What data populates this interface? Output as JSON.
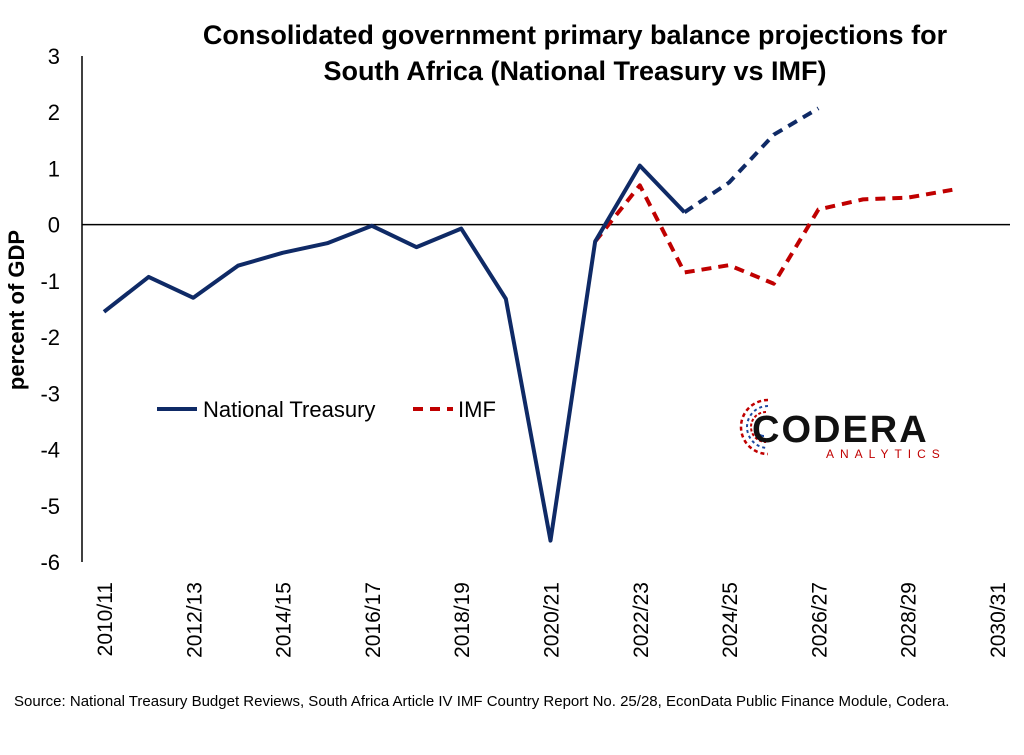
{
  "colors": {
    "treasury": "#0f2a66",
    "imf": "#c00000",
    "axis": "#000000",
    "logo_dark": "#111111",
    "logo_sub": "#c00000"
  },
  "logo": {
    "word": "CODERA",
    "sub": "ANALYTICS"
  },
  "source_text": "Source: National Treasury Budget Reviews, South Africa Article IV IMF Country Report No. 25/28, EconData Public Finance Module, Codera.",
  "chart_data": {
    "type": "line",
    "title_lines": [
      "Consolidated government primary balance projections for",
      "South Africa (National Treasury vs IMF)"
    ],
    "ylabel": "percent of GDP",
    "xlabel": "",
    "ylim": [
      -6,
      3
    ],
    "yticks": [
      3,
      2,
      1,
      0,
      -1,
      -2,
      -3,
      -4,
      -5,
      -6
    ],
    "x": [
      "2010/11",
      "2011/12",
      "2012/13",
      "2013/14",
      "2014/15",
      "2015/16",
      "2016/17",
      "2017/18",
      "2018/19",
      "2019/20",
      "2020/21",
      "2021/22",
      "2022/23",
      "2023/24",
      "2024/25",
      "2025/26",
      "2026/27",
      "2027/28",
      "2028/29",
      "2029/30",
      "2030/31"
    ],
    "xtick_labels": [
      "2010/11",
      "2012/13",
      "2014/15",
      "2016/17",
      "2018/19",
      "2020/21",
      "2022/23",
      "2024/25",
      "2026/27",
      "2028/29",
      "2030/31"
    ],
    "legend_position": "center-left",
    "series": [
      {
        "name": "National Treasury",
        "style": "solid-then-dashed",
        "solid_until": "2023/24",
        "points": [
          {
            "x": "2010/11",
            "y": -1.55
          },
          {
            "x": "2011/12",
            "y": -0.93
          },
          {
            "x": "2012/13",
            "y": -1.3
          },
          {
            "x": "2013/14",
            "y": -0.73
          },
          {
            "x": "2014/15",
            "y": -0.5
          },
          {
            "x": "2015/16",
            "y": -0.33
          },
          {
            "x": "2016/17",
            "y": -0.02
          },
          {
            "x": "2017/18",
            "y": -0.4
          },
          {
            "x": "2018/19",
            "y": -0.07
          },
          {
            "x": "2019/20",
            "y": -1.32
          },
          {
            "x": "2020/21",
            "y": -5.62
          },
          {
            "x": "2021/22",
            "y": -0.3
          },
          {
            "x": "2022/23",
            "y": 1.05
          },
          {
            "x": "2023/24",
            "y": 0.22
          },
          {
            "x": "2024/25",
            "y": 0.75
          },
          {
            "x": "2025/26",
            "y": 1.6
          },
          {
            "x": "2026/27",
            "y": 2.07
          }
        ]
      },
      {
        "name": "IMF",
        "style": "dashed",
        "points": [
          {
            "x": "2021/22",
            "y": -0.3
          },
          {
            "x": "2022/23",
            "y": 0.7
          },
          {
            "x": "2023/24",
            "y": -0.85
          },
          {
            "x": "2024/25",
            "y": -0.72
          },
          {
            "x": "2025/26",
            "y": -1.05
          },
          {
            "x": "2026/27",
            "y": 0.27
          },
          {
            "x": "2027/28",
            "y": 0.45
          },
          {
            "x": "2028/29",
            "y": 0.48
          },
          {
            "x": "2029/30",
            "y": 0.62
          }
        ]
      }
    ]
  }
}
